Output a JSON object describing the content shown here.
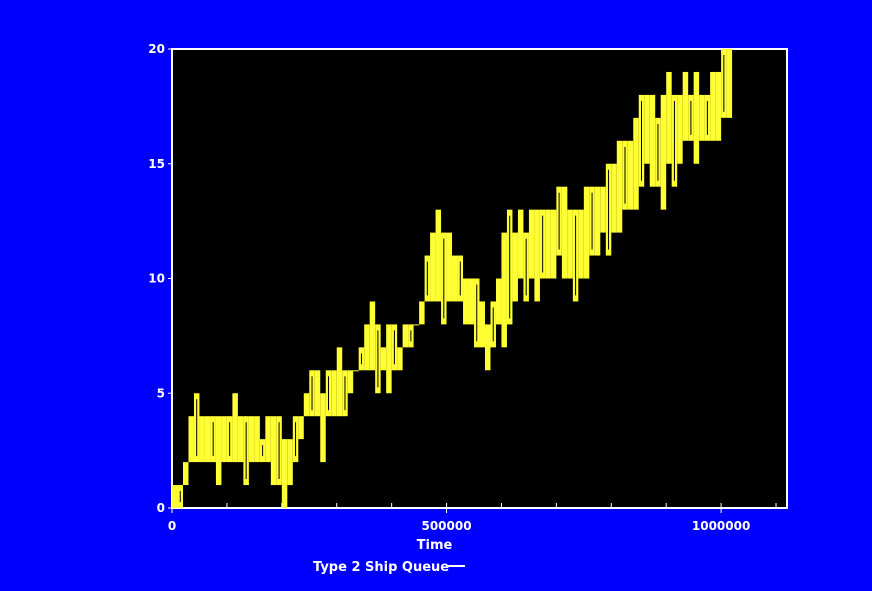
{
  "colors": {
    "background": "#0000ff",
    "plot_background": "#000000",
    "axis": "#ffffff",
    "text": "#ffffff",
    "series": "#ffff33"
  },
  "chart_data": {
    "type": "line",
    "title": "",
    "xlabel": "Time",
    "ylabel": "",
    "xlim": [
      0,
      1120000
    ],
    "ylim": [
      0,
      20
    ],
    "x_ticks": [
      0,
      500000,
      1000000
    ],
    "x_tick_labels": [
      "0",
      "500000",
      "1000000"
    ],
    "x_minor_step": 100000,
    "y_ticks": [
      0,
      5,
      10,
      15,
      20
    ],
    "y_tick_labels": [
      "0",
      "5",
      "10",
      "15",
      "20"
    ],
    "grid": false,
    "legend": "bottom-center",
    "series": [
      {
        "name": "Type 2 Ship Queue",
        "color": "#ffff33",
        "x": [
          0,
          10000,
          20000,
          30000,
          40000,
          50000,
          60000,
          70000,
          80000,
          90000,
          100000,
          110000,
          120000,
          130000,
          140000,
          150000,
          160000,
          170000,
          180000,
          190000,
          200000,
          210000,
          220000,
          230000,
          240000,
          250000,
          260000,
          270000,
          280000,
          290000,
          300000,
          310000,
          320000,
          330000,
          340000,
          350000,
          360000,
          370000,
          380000,
          390000,
          400000,
          410000,
          420000,
          430000,
          440000,
          450000,
          460000,
          470000,
          480000,
          490000,
          500000,
          510000,
          520000,
          530000,
          540000,
          550000,
          560000,
          570000,
          580000,
          590000,
          600000,
          610000,
          620000,
          630000,
          640000,
          650000,
          660000,
          670000,
          680000,
          690000,
          700000,
          710000,
          720000,
          730000,
          740000,
          750000,
          760000,
          770000,
          780000,
          790000,
          800000,
          810000,
          820000,
          830000,
          840000,
          850000,
          860000,
          870000,
          880000,
          890000,
          900000,
          910000,
          920000,
          930000,
          940000,
          950000,
          960000,
          970000,
          980000,
          990000,
          1000000,
          1010000
        ],
        "low": [
          0,
          0,
          1,
          2,
          2,
          2,
          2,
          2,
          1,
          2,
          2,
          2,
          2,
          1,
          2,
          2,
          2,
          2,
          1,
          1,
          0,
          1,
          2,
          3,
          4,
          4,
          4,
          2,
          4,
          4,
          4,
          4,
          5,
          6,
          6,
          6,
          6,
          5,
          6,
          5,
          6,
          6,
          7,
          7,
          8,
          8,
          9,
          9,
          9,
          8,
          9,
          9,
          9,
          8,
          8,
          7,
          7,
          6,
          7,
          8,
          7,
          8,
          9,
          10,
          9,
          10,
          9,
          10,
          10,
          10,
          11,
          10,
          10,
          9,
          10,
          10,
          11,
          11,
          12,
          11,
          12,
          12,
          13,
          13,
          13,
          14,
          15,
          14,
          14,
          13,
          15,
          14,
          15,
          16,
          16,
          15,
          16,
          16,
          16,
          16,
          17,
          17
        ],
        "high": [
          1,
          1,
          2,
          4,
          5,
          4,
          4,
          4,
          4,
          4,
          4,
          5,
          4,
          4,
          4,
          4,
          3,
          4,
          4,
          4,
          3,
          3,
          4,
          4,
          5,
          6,
          6,
          5,
          6,
          6,
          7,
          6,
          6,
          6,
          7,
          8,
          9,
          8,
          7,
          8,
          8,
          7,
          8,
          8,
          8,
          9,
          11,
          12,
          13,
          12,
          12,
          11,
          11,
          10,
          10,
          10,
          9,
          8,
          9,
          10,
          12,
          13,
          12,
          13,
          12,
          13,
          13,
          13,
          13,
          13,
          14,
          14,
          13,
          13,
          13,
          14,
          14,
          14,
          14,
          15,
          15,
          16,
          16,
          16,
          17,
          18,
          18,
          18,
          17,
          18,
          19,
          18,
          18,
          19,
          18,
          19,
          18,
          18,
          19,
          19,
          20,
          20
        ]
      }
    ]
  }
}
